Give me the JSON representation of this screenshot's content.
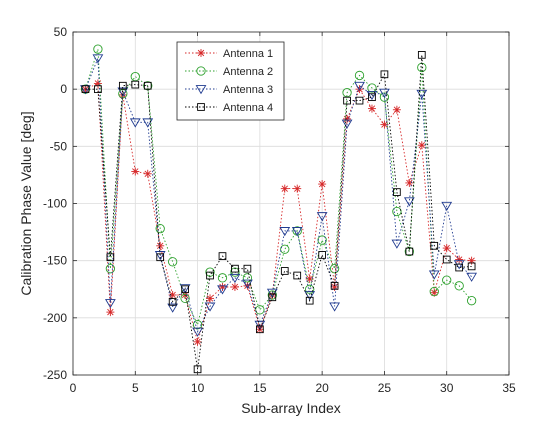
{
  "chart_data": {
    "type": "line",
    "title": "",
    "xlabel": "Sub-array Index",
    "ylabel": "Calibration Phase Value [deg]",
    "xlim": [
      0,
      35
    ],
    "ylim": [
      -250,
      50
    ],
    "xticks": [
      0,
      5,
      10,
      15,
      20,
      25,
      30,
      35
    ],
    "yticks": [
      -250,
      -200,
      -150,
      -100,
      -50,
      0,
      50
    ],
    "grid": true,
    "legend_position": "top-left (inside axes)",
    "x": [
      1,
      2,
      3,
      4,
      5,
      6,
      7,
      8,
      9,
      10,
      11,
      12,
      13,
      14,
      15,
      16,
      17,
      18,
      19,
      20,
      21,
      22,
      23,
      24,
      25,
      26,
      27,
      28,
      29,
      30,
      31,
      32
    ],
    "series": [
      {
        "name": "Antenna 1",
        "color": "#d62728",
        "marker": "asterisk",
        "values": [
          0,
          5,
          -195,
          -5,
          -72,
          -74,
          -137,
          -180,
          -180,
          -221,
          -183,
          -173,
          -173,
          -172,
          -210,
          -180,
          -87,
          -87,
          -166,
          -83,
          -173,
          -26,
          0,
          -17,
          -31,
          -18,
          -82,
          -49,
          -178,
          -139,
          -149,
          -150
        ]
      },
      {
        "name": "Antenna 2",
        "color": "#2ca02c",
        "marker": "circle",
        "values": [
          0,
          35,
          -157,
          -4,
          11,
          3,
          -122,
          -151,
          -183,
          -206,
          -160,
          -165,
          -160,
          -165,
          -193,
          -180,
          -140,
          -124,
          -175,
          -132,
          -157,
          -3,
          12,
          1,
          -7,
          -107,
          -142,
          19,
          -177,
          -167,
          -172,
          -185
        ]
      },
      {
        "name": "Antenna 3",
        "color": "#1f3a8f",
        "marker": "triangle-down",
        "values": [
          0,
          27,
          -187,
          -2,
          -29,
          -29,
          -145,
          -191,
          -174,
          -212,
          -190,
          -175,
          -165,
          -170,
          -206,
          -178,
          -124,
          -124,
          -180,
          -111,
          -190,
          -30,
          3,
          -5,
          -3,
          -135,
          -98,
          -4,
          -162,
          -102,
          -153,
          -164
        ]
      },
      {
        "name": "Antenna 4",
        "color": "#000000",
        "marker": "square",
        "values": [
          0,
          0,
          -147,
          3,
          4,
          3,
          -147,
          -186,
          -175,
          -245,
          -163,
          -146,
          -157,
          -157,
          -210,
          -182,
          -159,
          -163,
          -185,
          -145,
          -172,
          -10,
          -10,
          -7,
          13,
          -90,
          -142,
          30,
          -137,
          -149,
          -156,
          -155
        ]
      }
    ]
  }
}
